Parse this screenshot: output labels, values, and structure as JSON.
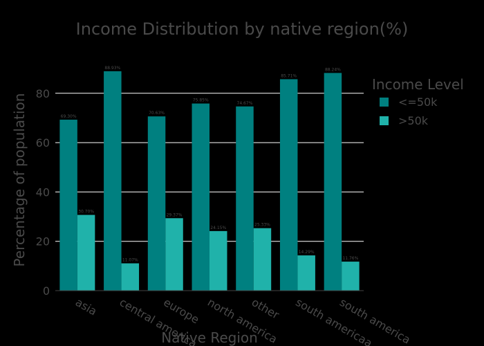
{
  "chart_data": {
    "type": "bar",
    "title": "Income Distribution by native region(%)",
    "xlabel": "Native Region",
    "ylabel": "Percentage of population",
    "categories": [
      "asia",
      "central america",
      "europe",
      "north america",
      "other",
      "south americaa",
      "south america"
    ],
    "ylim": [
      0,
      92
    ],
    "yticks": [
      0,
      20,
      40,
      60,
      80
    ],
    "grid": true,
    "legend_title": "Income Level",
    "legend_position": "right",
    "series": [
      {
        "name": "<=50k",
        "color": "#008080",
        "values": [
          69.3,
          88.93,
          70.63,
          75.85,
          74.67,
          85.71,
          88.24
        ],
        "labels": [
          "69.30%",
          "88.93%",
          "70.63%",
          "75.85%",
          "74.67%",
          "85.71%",
          "88.24%"
        ]
      },
      {
        "name": ">50k",
        "color": "#20b2aa",
        "values": [
          30.7,
          11.07,
          29.37,
          24.15,
          25.33,
          14.29,
          11.76
        ],
        "labels": [
          "30.70%",
          "11.07%",
          "29.37%",
          "24.15%",
          "25.33%",
          "14.29%",
          "11.76%"
        ]
      }
    ]
  }
}
